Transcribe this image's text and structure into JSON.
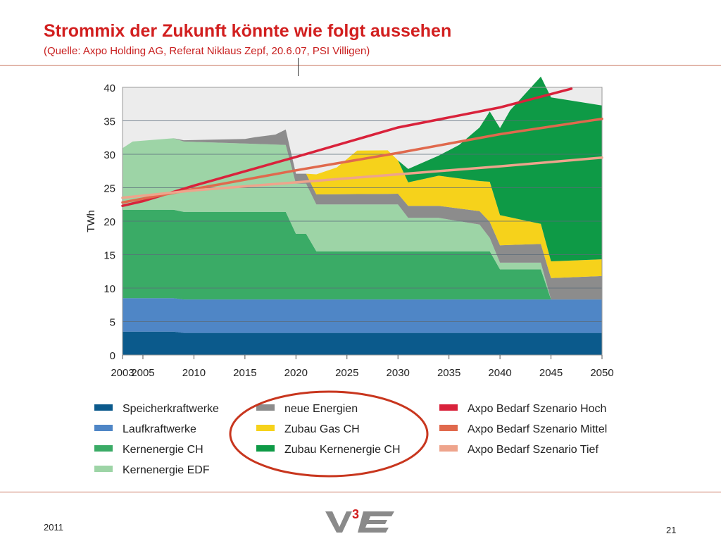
{
  "header": {
    "title": "Strommix der Zukunft könnte wie folgt aussehen",
    "subtitle": "(Quelle: Axpo Holding AG, Referat Niklaus Zepf, 20.6.07, PSI Villigen)"
  },
  "footer": {
    "year": "2011",
    "page": "21",
    "logo_text": "V3E"
  },
  "chart_data": {
    "type": "area",
    "ylabel": "TWh",
    "xlabel": "",
    "xlim": [
      2003,
      2050
    ],
    "ylim": [
      0,
      40
    ],
    "yticks": [
      0,
      5,
      10,
      15,
      20,
      25,
      30,
      35,
      40
    ],
    "xticks": [
      2003,
      2005,
      2010,
      2015,
      2020,
      2025,
      2030,
      2035,
      2040,
      2045,
      2050
    ],
    "grid": "horizontal",
    "legend_position": "bottom",
    "stacked_series": [
      {
        "name": "Speicherkraftwerke",
        "color": "#0b5a8c",
        "x": [
          2003,
          2008,
          2009,
          2050
        ],
        "y": [
          3.5,
          3.5,
          3.3,
          3.3
        ]
      },
      {
        "name": "Laufkraftwerke",
        "color": "#4f86c6",
        "x": [
          2003,
          2008,
          2009,
          2050
        ],
        "y": [
          5.0,
          5.0,
          5.0,
          5.0
        ]
      },
      {
        "name": "Kernenergie CH",
        "color": "#3aab66",
        "x": [
          2003,
          2008,
          2009,
          2019,
          2020,
          2021,
          2022,
          2039,
          2040,
          2044,
          2045,
          2050
        ],
        "y": [
          13.2,
          13.2,
          13.1,
          13.1,
          9.8,
          9.8,
          7.2,
          7.2,
          4.5,
          4.5,
          0,
          0
        ]
      },
      {
        "name": "Kernenergie EDF",
        "color": "#9dd4a6",
        "x": [
          2003,
          2004,
          2008,
          2009,
          2019,
          2020,
          2021,
          2022,
          2030,
          2031,
          2034,
          2038,
          2039,
          2040,
          2044,
          2045,
          2050
        ],
        "y": [
          9.2,
          10.2,
          10.7,
          10.5,
          10.0,
          7.5,
          7.5,
          7.0,
          7.0,
          5.0,
          5.0,
          4.0,
          2.0,
          1.0,
          1.0,
          0,
          0
        ]
      },
      {
        "name": "neue Energien",
        "color": "#8c8c8c",
        "x": [
          2003,
          2008,
          2009,
          2015,
          2016,
          2018,
          2019,
          2020,
          2021,
          2022,
          2030,
          2031,
          2034,
          2038,
          2039,
          2040,
          2044,
          2045,
          2050
        ],
        "y": [
          0,
          0,
          0.2,
          0.7,
          1.0,
          1.5,
          2.3,
          1.5,
          1.5,
          1.5,
          1.6,
          1.8,
          1.8,
          2.0,
          2.4,
          2.6,
          2.8,
          3.2,
          3.5
        ]
      },
      {
        "name": "Zubau Gas CH",
        "color": "#f6d21b",
        "x": [
          2003,
          2019,
          2020,
          2021,
          2022,
          2024,
          2026,
          2029,
          2030,
          2031,
          2034,
          2038,
          2039,
          2040,
          2044,
          2045,
          2050
        ],
        "y": [
          0,
          0,
          0,
          0,
          3.0,
          4.0,
          6.5,
          6.5,
          5.0,
          3.5,
          4.5,
          4.5,
          6.0,
          4.5,
          3.0,
          2.5,
          2.5
        ]
      },
      {
        "name": "Zubau Kernenergie CH",
        "color": "#0e9a46",
        "x": [
          2003,
          2029,
          2030,
          2031,
          2034,
          2036,
          2038,
          2040,
          2041,
          2042,
          2043,
          2044,
          2045,
          2050
        ],
        "y": [
          0,
          0,
          0,
          2.0,
          3.0,
          5.0,
          8.0,
          13.0,
          16.0,
          18.0,
          20.0,
          22.0,
          24.5,
          23.0
        ]
      }
    ],
    "line_series": [
      {
        "name": "Axpo Bedarf Szenario Hoch",
        "color": "#d9223b",
        "x": [
          2003,
          2005,
          2010,
          2020,
          2030,
          2040,
          2047
        ],
        "y": [
          22.3,
          23.0,
          25.3,
          29.6,
          34.0,
          37.0,
          39.8
        ]
      },
      {
        "name": "Axpo Bedarf Szenario Mittel",
        "color": "#e0694d",
        "x": [
          2003,
          2010,
          2020,
          2030,
          2040,
          2050
        ],
        "y": [
          22.8,
          24.8,
          27.6,
          30.2,
          33.0,
          35.3
        ]
      },
      {
        "name": "Axpo Bedarf Szenario Tief",
        "color": "#eea48c",
        "x": [
          2003,
          2010,
          2020,
          2030,
          2040,
          2050
        ],
        "y": [
          23.5,
          24.6,
          25.8,
          27.0,
          28.2,
          29.5
        ]
      }
    ],
    "legend": [
      {
        "label": "Speicherkraftwerke",
        "color": "#0b5a8c"
      },
      {
        "label": "Laufkraftwerke",
        "color": "#4f86c6"
      },
      {
        "label": "Kernenergie CH",
        "color": "#3aab66"
      },
      {
        "label": "Kernenergie EDF",
        "color": "#9dd4a6"
      },
      {
        "label": "neue Energien",
        "color": "#8c8c8c"
      },
      {
        "label": "Zubau Gas CH",
        "color": "#f6d21b"
      },
      {
        "label": "Zubau Kernenergie CH",
        "color": "#0e9a46"
      },
      {
        "label": "Axpo Bedarf Szenario Hoch",
        "color": "#d9223b"
      },
      {
        "label": "Axpo Bedarf Szenario Mittel",
        "color": "#e0694d"
      },
      {
        "label": "Axpo Bedarf Szenario Tief",
        "color": "#eea48c"
      }
    ],
    "annotation": {
      "shape": "ellipse",
      "color": "#c8361e",
      "encircles": [
        "neue Energien",
        "Zubau Gas CH",
        "Zubau Kernenergie CH"
      ]
    }
  }
}
